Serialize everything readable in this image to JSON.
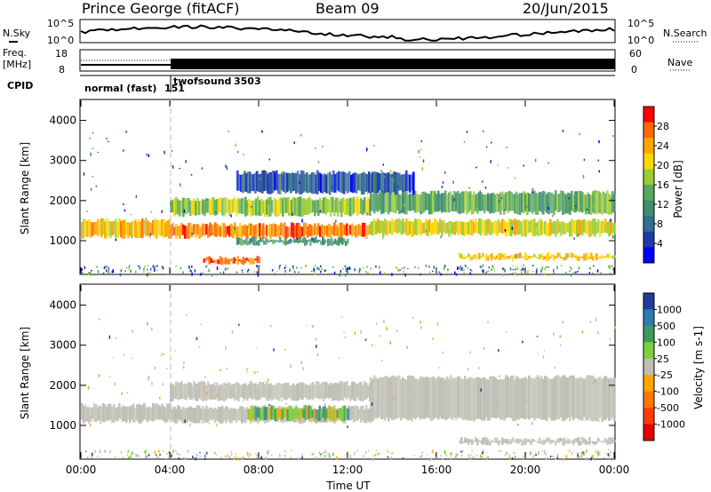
{
  "header": {
    "station": "Prince George (fitACF)",
    "beam": "Beam 09",
    "date": "20/Jun/2015"
  },
  "top_panels": {
    "nsky_label": "N.Sky",
    "nsky_ticks": [
      "10^5",
      "10^0"
    ],
    "nsearch_label": "N.Search",
    "nsearch_ticks": [
      "10^5",
      "10^0"
    ],
    "freq_label_1": "Freq.",
    "freq_label_2": "[MHz]",
    "freq_ticks": [
      "18",
      "8"
    ],
    "nave_label": "Nave",
    "nave_ticks": [
      "60",
      "0"
    ],
    "cpid_label": "CPID",
    "cpid_mode_1": "normal (fast)",
    "cpid_id_1": "151",
    "cpid_mode_2": "twofsound",
    "cpid_id_2": "3503"
  },
  "chart_data": [
    {
      "type": "heatmap",
      "ylabel": "Slant Range [km]",
      "y_ticks": [
        "4000",
        "3000",
        "2000",
        "1000"
      ],
      "ylim": [
        180,
        4500
      ],
      "colorbar": {
        "label": "Power [dB]",
        "ticks": [
          "28",
          "24",
          "20",
          "16",
          "12",
          "8",
          "4"
        ],
        "range": [
          0,
          32
        ],
        "colors": [
          "#0000ff",
          "#1d3aa8",
          "#2f6f8f",
          "#3f8f6f",
          "#5aa85a",
          "#9acd32",
          "#ffd700",
          "#ffa500",
          "#ff6a00",
          "#ff0000"
        ]
      },
      "bands": [
        {
          "t0": 0.0,
          "t1": 4.0,
          "r0": 1100,
          "r1": 1500,
          "level": 22
        },
        {
          "t0": 4.0,
          "t1": 13.0,
          "r0": 1100,
          "r1": 1400,
          "level": 26
        },
        {
          "t0": 4.0,
          "t1": 13.0,
          "r0": 1650,
          "r1": 2050,
          "level": 17
        },
        {
          "t0": 5.5,
          "t1": 8.0,
          "r0": 450,
          "r1": 560,
          "level": 28
        },
        {
          "t0": 7.0,
          "t1": 12.0,
          "r0": 920,
          "r1": 1050,
          "level": 12
        },
        {
          "t0": 13.0,
          "t1": 24.0,
          "r0": 1150,
          "r1": 1500,
          "level": 20
        },
        {
          "t0": 13.0,
          "t1": 24.0,
          "r0": 1700,
          "r1": 2200,
          "level": 14
        },
        {
          "t0": 17.0,
          "t1": 24.0,
          "r0": 550,
          "r1": 650,
          "level": 22
        },
        {
          "t0": 7.0,
          "t1": 15.0,
          "r0": 2200,
          "r1": 2700,
          "level": 6
        }
      ]
    },
    {
      "type": "heatmap",
      "ylabel": "Slant Range [km]",
      "xlabel": "Time UT",
      "x_ticks": [
        "00:00",
        "04:00",
        "08:00",
        "12:00",
        "16:00",
        "20:00",
        "00:00"
      ],
      "y_ticks": [
        "4000",
        "3000",
        "2000",
        "1000"
      ],
      "ylim": [
        180,
        4500
      ],
      "colorbar": {
        "label": "Velocity [m s-1]",
        "ticks": [
          "1000",
          "500",
          "100",
          "25",
          "-25",
          "-100",
          "-500",
          "-1000"
        ],
        "colors": [
          "#1e3c9e",
          "#2e7bb0",
          "#3c9b5a",
          "#7ccf3c",
          "#bebeb4",
          "#ffa500",
          "#ff7800",
          "#ff3c00",
          "#e60000"
        ]
      },
      "bands": [
        {
          "t0": 0.0,
          "t1": 4.0,
          "r0": 1100,
          "r1": 1500,
          "level": 0
        },
        {
          "t0": 4.0,
          "t1": 13.0,
          "r0": 1100,
          "r1": 1450,
          "level": 0
        },
        {
          "t0": 4.0,
          "t1": 13.0,
          "r0": 1650,
          "r1": 2050,
          "level": 0
        },
        {
          "t0": 7.5,
          "t1": 12.0,
          "r0": 1150,
          "r1": 1450,
          "level": 80
        },
        {
          "t0": 13.0,
          "t1": 24.0,
          "r0": 1150,
          "r1": 2200,
          "level": 0
        },
        {
          "t0": 17.0,
          "t1": 24.0,
          "r0": 550,
          "r1": 650,
          "level": 0
        }
      ]
    }
  ]
}
